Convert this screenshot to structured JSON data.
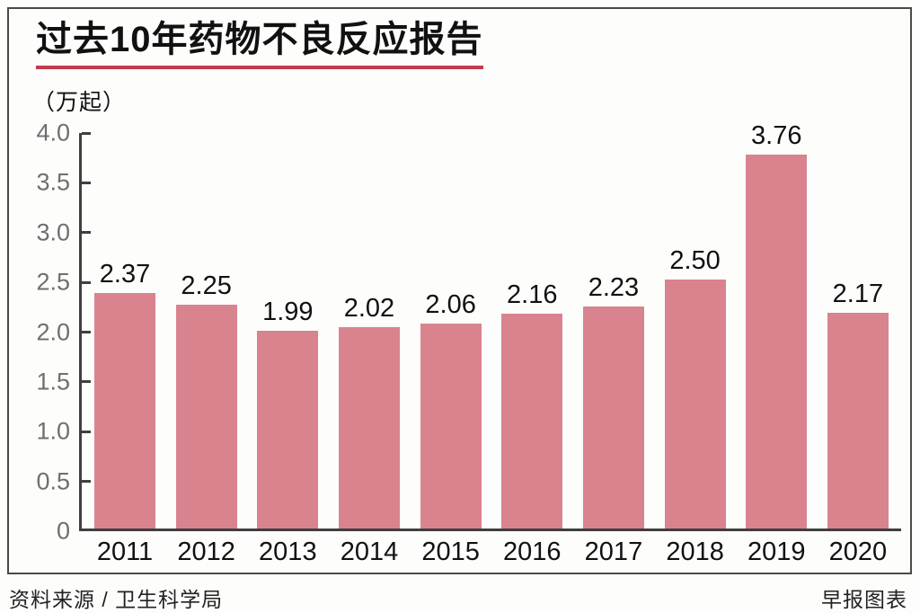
{
  "title": "过去10年药物不良反应报告",
  "unit_label": "（万起）",
  "footer": {
    "source": "资料来源 / 卫生科学局",
    "credit": "早报图表"
  },
  "colors": {
    "bar": "#d9838e",
    "title_underline": "#c23a4c",
    "axis": "#3f3f3f",
    "tick_label": "#6f6f6f",
    "text": "#111111",
    "frame_border": "#4a4a4a"
  },
  "chart_data": {
    "type": "bar",
    "title": "过去10年药物不良反应报告",
    "xlabel": "",
    "ylabel": "（万起）",
    "categories": [
      "2011",
      "2012",
      "2013",
      "2014",
      "2015",
      "2016",
      "2017",
      "2018",
      "2019",
      "2020"
    ],
    "values": [
      2.37,
      2.25,
      1.99,
      2.02,
      2.06,
      2.16,
      2.23,
      2.5,
      3.76,
      2.17
    ],
    "value_labels": [
      "2.37",
      "2.25",
      "1.99",
      "2.02",
      "2.06",
      "2.16",
      "2.23",
      "2.50",
      "3.76",
      "2.17"
    ],
    "ylim": [
      0,
      4.0
    ],
    "yticks": [
      0,
      0.5,
      1.0,
      1.5,
      2.0,
      2.5,
      3.0,
      3.5,
      4.0
    ],
    "ytick_labels": [
      "0",
      "0.5",
      "1.0",
      "1.5",
      "2.0",
      "2.5",
      "3.0",
      "3.5",
      "4.0"
    ],
    "grid": false,
    "legend": null,
    "bar_labels_position": "above"
  }
}
